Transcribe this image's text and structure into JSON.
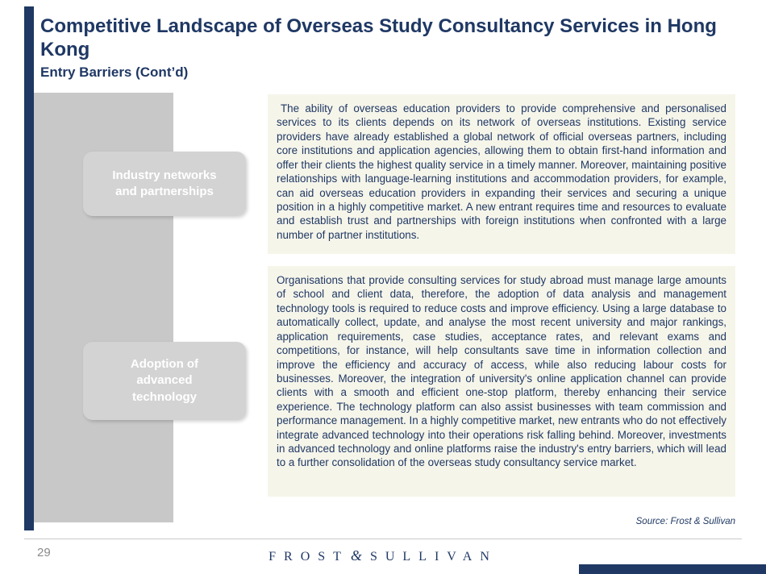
{
  "colors": {
    "navy": "#1F3864",
    "gray_column": "#C8C8C8",
    "box_gray": "#D3D3D3",
    "cream_block": "#F6F5EA",
    "footer_line": "#C9C9C9",
    "page_number_gray": "#8A8A8A"
  },
  "header": {
    "title": "Competitive Landscape of Overseas Study Consultancy Services in Hong Kong",
    "subtitle": "Entry Barriers (Cont’d)"
  },
  "barriers": [
    {
      "label": "Industry networks and partnerships",
      "text": "The ability of overseas education providers to provide comprehensive and personalised services to its clients depends on its network of overseas institutions. Existing service providers have already established a global network of official overseas partners, including core institutions and application agencies, allowing them to obtain first-hand information and offer their clients the highest quality service in a timely manner. Moreover, maintaining positive relationships with language-learning institutions and accommodation providers, for example, can aid overseas education providers in expanding their services and securing a unique position in a highly competitive market. A new entrant requires time and resources to evaluate and establish trust and partnerships with foreign institutions when confronted with a large number of partner institutions."
    },
    {
      "label": "Adoption of advanced technology",
      "text": "Organisations that provide consulting services for study abroad must manage large amounts of school and client data, therefore, the adoption of data analysis and management technology tools is required to reduce costs and improve efficiency. Using a large database to automatically collect, update, and analyse the most recent university and major rankings, application requirements, case studies, acceptance rates, and relevant exams and competitions, for instance, will help consultants save time in information collection and improve the efficiency and accuracy of access, while also reducing labour costs for businesses. Moreover, the integration of university's online application channel can provide clients with a smooth and efficient one-stop platform, thereby enhancing their service experience. The technology platform can also assist businesses with team commission and performance management. In a highly competitive market, new entrants who do not effectively integrate advanced technology into their operations risk falling behind. Moreover, investments in advanced technology and online platforms raise the industry's entry barriers, which will lead to a further consolidation of the overseas study consultancy service market."
    }
  ],
  "footer": {
    "source": "Source: Frost & Sullivan",
    "page_number": "29",
    "logo": {
      "left": "FROST",
      "amp": "&",
      "right": "SULLIVAN"
    }
  }
}
